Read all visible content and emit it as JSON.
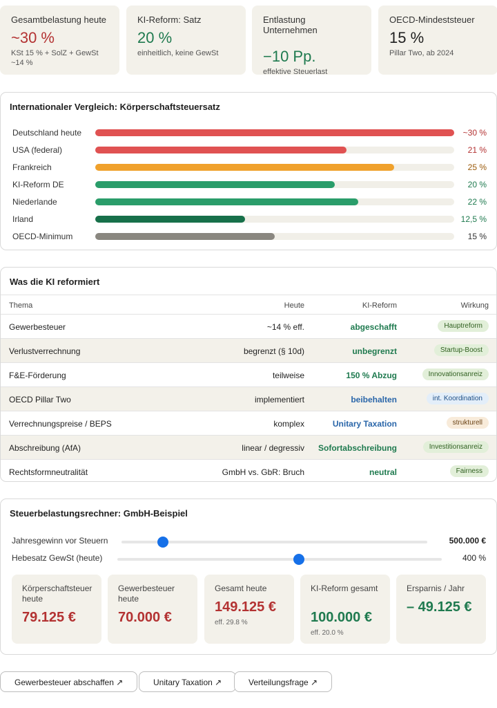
{
  "kpis": [
    {
      "label": "Gesamtbelastung heute",
      "value": "~30 %",
      "sub": "KSt 15 % + SolZ + GewSt ~14 %",
      "color": "#b33232"
    },
    {
      "label": "KI-Reform: Satz",
      "value": "20 %",
      "sub": "einheitlich, keine GewSt",
      "color": "#1f7a4f"
    },
    {
      "label": "Entlastung Unternehmen",
      "value": "−10 Pp.",
      "sub": "effektive Steuerlast",
      "color": "#1f7a4f"
    },
    {
      "label": "OECD-Mindeststeuer",
      "value": "15 %",
      "sub": "Pillar Two, ab 2024",
      "color": "#1f1f1f"
    }
  ],
  "comparison": {
    "title": "Internationaler Vergleich: Körperschaftsteuersatz",
    "rows": [
      {
        "name": "Deutschland heute",
        "label": "~30 %",
        "value": 30,
        "bar_color": "#e05252",
        "text_color": "#b33232"
      },
      {
        "name": "USA (federal)",
        "label": "21 %",
        "value": 21,
        "bar_color": "#e05252",
        "text_color": "#b33232"
      },
      {
        "name": "Frankreich",
        "label": "25 %",
        "value": 25,
        "bar_color": "#f0a12c",
        "text_color": "#9a5a0a"
      },
      {
        "name": "KI-Reform DE",
        "label": "20 %",
        "value": 20,
        "bar_color": "#2a9d6a",
        "text_color": "#1f7a4f"
      },
      {
        "name": "Niederlande",
        "label": "22 %",
        "value": 22,
        "bar_color": "#2a9d6a",
        "text_color": "#1f7a4f"
      },
      {
        "name": "Irland",
        "label": "12,5 %",
        "value": 12.5,
        "bar_color": "#17704a",
        "text_color": "#1f7a4f"
      },
      {
        "name": "OECD-Minimum",
        "label": "15 %",
        "value": 15,
        "bar_color": "#8a8780",
        "text_color": "#333333"
      }
    ]
  },
  "reform": {
    "title": "Was die KI reformiert",
    "headers": {
      "thema": "Thema",
      "heute": "Heute",
      "ki": "KI-Reform",
      "wirkung": "Wirkung"
    },
    "rows": [
      {
        "thema": "Gewerbesteuer",
        "heute": "~14 % eff.",
        "ki": "abgeschafft",
        "ki_color": "green",
        "wirkung": "Hauptreform",
        "pill": "green"
      },
      {
        "thema": "Verlustverrechnung",
        "heute": "begrenzt (§ 10d)",
        "ki": "unbegrenzt",
        "ki_color": "green",
        "wirkung": "Startup-Boost",
        "pill": "green"
      },
      {
        "thema": "F&E-Förderung",
        "heute": "teilweise",
        "ki": "150 % Abzug",
        "ki_color": "green",
        "wirkung": "Innovationsanreiz",
        "pill": "green"
      },
      {
        "thema": "OECD Pillar Two",
        "heute": "implementiert",
        "ki": "beibehalten",
        "ki_color": "blue",
        "wirkung": "int. Koordination",
        "pill": "blue"
      },
      {
        "thema": "Verrechnungspreise / BEPS",
        "heute": "komplex",
        "ki": "Unitary Taxation",
        "ki_color": "blue",
        "wirkung": "strukturell",
        "pill": "orange"
      },
      {
        "thema": "Abschreibung (AfA)",
        "heute": "linear / degressiv",
        "ki": "Sofortabschreibung",
        "ki_color": "green",
        "wirkung": "Investitionsanreiz",
        "pill": "green"
      },
      {
        "thema": "Rechtsformneutralität",
        "heute": "GmbH vs. GbR: Bruch",
        "ki": "neutral",
        "ki_color": "green",
        "wirkung": "Fairness",
        "pill": "green"
      }
    ]
  },
  "calculator": {
    "title": "Steuerbelastungsrechner: GmbH-Beispiel",
    "profit": {
      "label": "Jahresgewinn vor Steuern",
      "value": "500.000 €",
      "fraction": 0.1
    },
    "hebesatz": {
      "label": "Hebesatz GewSt (heute)",
      "value": "400 %",
      "fraction": 0.56
    },
    "results": [
      {
        "label": "Körperschaftsteuer heute",
        "value": "79.125 €",
        "eff": "",
        "color": "#b33232"
      },
      {
        "label": "Gewerbesteuer heute",
        "value": "70.000 €",
        "eff": "",
        "color": "#b33232"
      },
      {
        "label": "Gesamt heute",
        "value": "149.125 €",
        "eff": "eff. 29.8 %",
        "color": "#b33232"
      },
      {
        "label": "KI-Reform gesamt",
        "value": "100.000 €",
        "eff": "eff. 20.0 %",
        "color": "#1f7a4f"
      },
      {
        "label": "Ersparnis / Jahr",
        "value": "– 49.125 €",
        "eff": "",
        "color": "#1f7a4f"
      }
    ]
  },
  "buttons": [
    "Gewerbesteuer abschaffen ↗",
    "Unitary Taxation ↗",
    "Verteilungsfrage ↗"
  ]
}
